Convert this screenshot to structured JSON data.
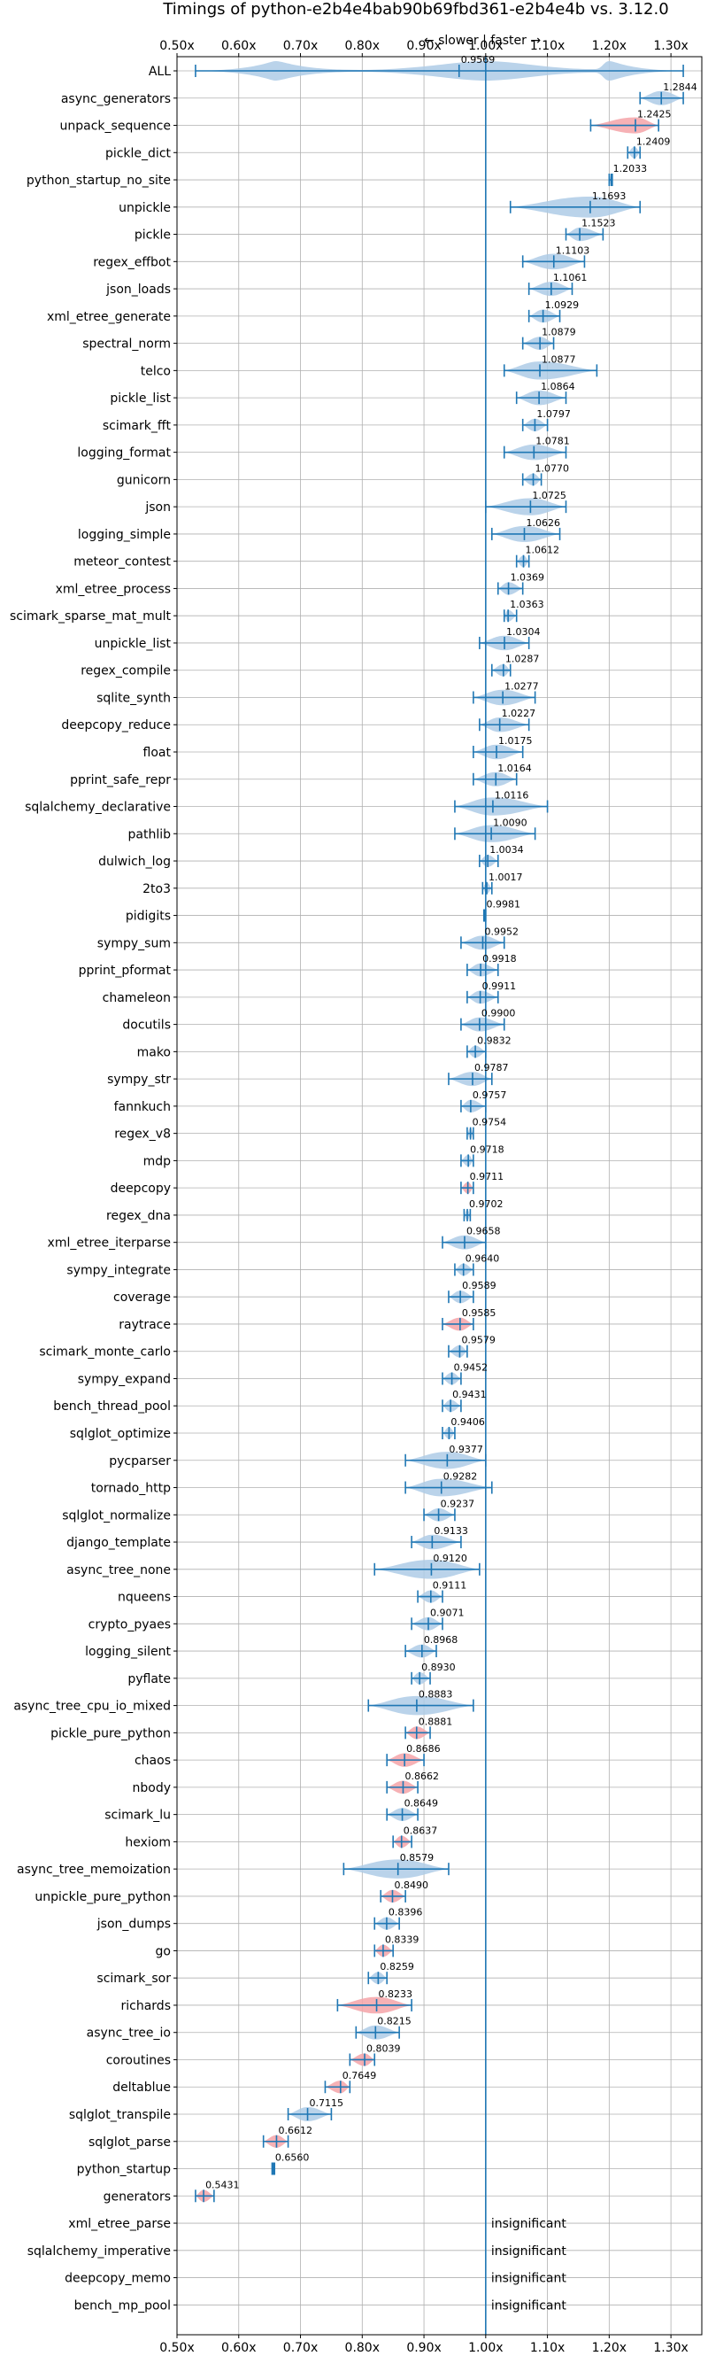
{
  "chart_data": {
    "type": "violin",
    "title": "Timings of python-e2b4e4bab90b69fbd361-e2b4e4b vs. 3.12.0",
    "direction_label": "← slower | faster →",
    "xlim": [
      0.5,
      1.35
    ],
    "xticks": [
      "0.50x",
      "0.60x",
      "0.70x",
      "0.80x",
      "0.90x",
      "1.00x",
      "1.10x",
      "1.20x",
      "1.30x"
    ],
    "grid": true,
    "colors": {
      "faster": "#aecbe6",
      "slower": "#f4a3a8",
      "line": "#1f77b4",
      "reference": "#1f77b4"
    },
    "insignificant_text": "insignificant",
    "benchmarks": [
      {
        "name": "ALL",
        "value": 0.9569,
        "min": 0.53,
        "max": 1.32,
        "color": "faster"
      },
      {
        "name": "async_generators",
        "value": 1.2844,
        "min": 1.25,
        "max": 1.32,
        "color": "faster"
      },
      {
        "name": "unpack_sequence",
        "value": 1.2425,
        "min": 1.17,
        "max": 1.28,
        "color": "slower"
      },
      {
        "name": "pickle_dict",
        "value": 1.2409,
        "min": 1.23,
        "max": 1.25,
        "color": "faster"
      },
      {
        "name": "python_startup_no_site",
        "value": 1.2033,
        "min": 1.2,
        "max": 1.205,
        "color": "faster"
      },
      {
        "name": "unpickle",
        "value": 1.1693,
        "min": 1.04,
        "max": 1.25,
        "color": "faster"
      },
      {
        "name": "pickle",
        "value": 1.1523,
        "min": 1.13,
        "max": 1.19,
        "color": "faster"
      },
      {
        "name": "regex_effbot",
        "value": 1.1103,
        "min": 1.06,
        "max": 1.16,
        "color": "faster"
      },
      {
        "name": "json_loads",
        "value": 1.1061,
        "min": 1.07,
        "max": 1.14,
        "color": "faster"
      },
      {
        "name": "xml_etree_generate",
        "value": 1.0929,
        "min": 1.07,
        "max": 1.12,
        "color": "faster"
      },
      {
        "name": "spectral_norm",
        "value": 1.0879,
        "min": 1.06,
        "max": 1.11,
        "color": "faster"
      },
      {
        "name": "telco",
        "value": 1.0877,
        "min": 1.03,
        "max": 1.18,
        "color": "faster"
      },
      {
        "name": "pickle_list",
        "value": 1.0864,
        "min": 1.05,
        "max": 1.13,
        "color": "faster"
      },
      {
        "name": "scimark_fft",
        "value": 1.0797,
        "min": 1.06,
        "max": 1.1,
        "color": "faster"
      },
      {
        "name": "logging_format",
        "value": 1.0781,
        "min": 1.03,
        "max": 1.13,
        "color": "faster"
      },
      {
        "name": "gunicorn",
        "value": 1.077,
        "min": 1.06,
        "max": 1.09,
        "color": "faster"
      },
      {
        "name": "json",
        "value": 1.0725,
        "min": 1.0,
        "max": 1.13,
        "color": "faster"
      },
      {
        "name": "logging_simple",
        "value": 1.0626,
        "min": 1.01,
        "max": 1.12,
        "color": "faster"
      },
      {
        "name": "meteor_contest",
        "value": 1.0612,
        "min": 1.05,
        "max": 1.07,
        "color": "faster"
      },
      {
        "name": "xml_etree_process",
        "value": 1.0369,
        "min": 1.02,
        "max": 1.06,
        "color": "faster"
      },
      {
        "name": "scimark_sparse_mat_mult",
        "value": 1.0363,
        "min": 1.03,
        "max": 1.05,
        "color": "faster"
      },
      {
        "name": "unpickle_list",
        "value": 1.0304,
        "min": 0.99,
        "max": 1.07,
        "color": "faster"
      },
      {
        "name": "regex_compile",
        "value": 1.0287,
        "min": 1.01,
        "max": 1.04,
        "color": "faster"
      },
      {
        "name": "sqlite_synth",
        "value": 1.0277,
        "min": 0.98,
        "max": 1.08,
        "color": "faster"
      },
      {
        "name": "deepcopy_reduce",
        "value": 1.0227,
        "min": 0.99,
        "max": 1.07,
        "color": "faster"
      },
      {
        "name": "float",
        "value": 1.0175,
        "min": 0.98,
        "max": 1.06,
        "color": "faster"
      },
      {
        "name": "pprint_safe_repr",
        "value": 1.0164,
        "min": 0.98,
        "max": 1.05,
        "color": "faster"
      },
      {
        "name": "sqlalchemy_declarative",
        "value": 1.0116,
        "min": 0.95,
        "max": 1.1,
        "color": "faster"
      },
      {
        "name": "pathlib",
        "value": 1.009,
        "min": 0.95,
        "max": 1.08,
        "color": "faster"
      },
      {
        "name": "dulwich_log",
        "value": 1.0034,
        "min": 0.99,
        "max": 1.02,
        "color": "faster"
      },
      {
        "name": "2to3",
        "value": 1.0017,
        "min": 0.995,
        "max": 1.01,
        "color": "faster"
      },
      {
        "name": "pidigits",
        "value": 0.9981,
        "min": 0.997,
        "max": 1.0,
        "color": "faster"
      },
      {
        "name": "sympy_sum",
        "value": 0.9952,
        "min": 0.96,
        "max": 1.03,
        "color": "faster"
      },
      {
        "name": "pprint_pformat",
        "value": 0.9918,
        "min": 0.97,
        "max": 1.02,
        "color": "faster"
      },
      {
        "name": "chameleon",
        "value": 0.9911,
        "min": 0.97,
        "max": 1.02,
        "color": "faster"
      },
      {
        "name": "docutils",
        "value": 0.99,
        "min": 0.96,
        "max": 1.03,
        "color": "faster"
      },
      {
        "name": "mako",
        "value": 0.9832,
        "min": 0.97,
        "max": 1.0,
        "color": "faster"
      },
      {
        "name": "sympy_str",
        "value": 0.9787,
        "min": 0.94,
        "max": 1.01,
        "color": "faster"
      },
      {
        "name": "fannkuch",
        "value": 0.9757,
        "min": 0.96,
        "max": 1.0,
        "color": "faster"
      },
      {
        "name": "regex_v8",
        "value": 0.9754,
        "min": 0.97,
        "max": 0.98,
        "color": "faster"
      },
      {
        "name": "mdp",
        "value": 0.9718,
        "min": 0.96,
        "max": 0.98,
        "color": "faster"
      },
      {
        "name": "deepcopy",
        "value": 0.9711,
        "min": 0.96,
        "max": 0.98,
        "color": "slower"
      },
      {
        "name": "regex_dna",
        "value": 0.9702,
        "min": 0.965,
        "max": 0.975,
        "color": "faster"
      },
      {
        "name": "xml_etree_iterparse",
        "value": 0.9658,
        "min": 0.93,
        "max": 1.0,
        "color": "faster"
      },
      {
        "name": "sympy_integrate",
        "value": 0.964,
        "min": 0.95,
        "max": 0.98,
        "color": "faster"
      },
      {
        "name": "coverage",
        "value": 0.9589,
        "min": 0.94,
        "max": 0.98,
        "color": "faster"
      },
      {
        "name": "raytrace",
        "value": 0.9585,
        "min": 0.93,
        "max": 0.98,
        "color": "slower"
      },
      {
        "name": "scimark_monte_carlo",
        "value": 0.9579,
        "min": 0.94,
        "max": 0.97,
        "color": "faster"
      },
      {
        "name": "sympy_expand",
        "value": 0.9452,
        "min": 0.93,
        "max": 0.96,
        "color": "faster"
      },
      {
        "name": "bench_thread_pool",
        "value": 0.9431,
        "min": 0.93,
        "max": 0.96,
        "color": "faster"
      },
      {
        "name": "sqlglot_optimize",
        "value": 0.9406,
        "min": 0.93,
        "max": 0.95,
        "color": "faster"
      },
      {
        "name": "pycparser",
        "value": 0.9377,
        "min": 0.87,
        "max": 1.0,
        "color": "faster"
      },
      {
        "name": "tornado_http",
        "value": 0.9282,
        "min": 0.87,
        "max": 1.01,
        "color": "faster"
      },
      {
        "name": "sqlglot_normalize",
        "value": 0.9237,
        "min": 0.9,
        "max": 0.95,
        "color": "faster"
      },
      {
        "name": "django_template",
        "value": 0.9133,
        "min": 0.88,
        "max": 0.96,
        "color": "faster"
      },
      {
        "name": "async_tree_none",
        "value": 0.912,
        "min": 0.82,
        "max": 0.99,
        "color": "faster"
      },
      {
        "name": "nqueens",
        "value": 0.9111,
        "min": 0.89,
        "max": 0.93,
        "color": "faster"
      },
      {
        "name": "crypto_pyaes",
        "value": 0.9071,
        "min": 0.88,
        "max": 0.93,
        "color": "faster"
      },
      {
        "name": "logging_silent",
        "value": 0.8968,
        "min": 0.87,
        "max": 0.92,
        "color": "faster"
      },
      {
        "name": "pyflate",
        "value": 0.893,
        "min": 0.88,
        "max": 0.91,
        "color": "faster"
      },
      {
        "name": "async_tree_cpu_io_mixed",
        "value": 0.8883,
        "min": 0.81,
        "max": 0.98,
        "color": "faster"
      },
      {
        "name": "pickle_pure_python",
        "value": 0.8881,
        "min": 0.87,
        "max": 0.91,
        "color": "slower"
      },
      {
        "name": "chaos",
        "value": 0.8686,
        "min": 0.84,
        "max": 0.9,
        "color": "slower"
      },
      {
        "name": "nbody",
        "value": 0.8662,
        "min": 0.84,
        "max": 0.89,
        "color": "slower"
      },
      {
        "name": "scimark_lu",
        "value": 0.8649,
        "min": 0.84,
        "max": 0.89,
        "color": "faster"
      },
      {
        "name": "hexiom",
        "value": 0.8637,
        "min": 0.85,
        "max": 0.88,
        "color": "slower"
      },
      {
        "name": "async_tree_memoization",
        "value": 0.8579,
        "min": 0.77,
        "max": 0.94,
        "color": "faster"
      },
      {
        "name": "unpickle_pure_python",
        "value": 0.849,
        "min": 0.83,
        "max": 0.87,
        "color": "slower"
      },
      {
        "name": "json_dumps",
        "value": 0.8396,
        "min": 0.82,
        "max": 0.86,
        "color": "faster"
      },
      {
        "name": "go",
        "value": 0.8339,
        "min": 0.82,
        "max": 0.85,
        "color": "slower"
      },
      {
        "name": "scimark_sor",
        "value": 0.8259,
        "min": 0.81,
        "max": 0.84,
        "color": "faster"
      },
      {
        "name": "richards",
        "value": 0.8233,
        "min": 0.76,
        "max": 0.88,
        "color": "slower"
      },
      {
        "name": "async_tree_io",
        "value": 0.8215,
        "min": 0.79,
        "max": 0.86,
        "color": "faster"
      },
      {
        "name": "coroutines",
        "value": 0.8039,
        "min": 0.78,
        "max": 0.82,
        "color": "slower"
      },
      {
        "name": "deltablue",
        "value": 0.7649,
        "min": 0.74,
        "max": 0.78,
        "color": "slower"
      },
      {
        "name": "sqlglot_transpile",
        "value": 0.7115,
        "min": 0.68,
        "max": 0.75,
        "color": "faster"
      },
      {
        "name": "sqlglot_parse",
        "value": 0.6612,
        "min": 0.64,
        "max": 0.68,
        "color": "slower"
      },
      {
        "name": "python_startup",
        "value": 0.656,
        "min": 0.654,
        "max": 0.658,
        "color": "faster"
      },
      {
        "name": "generators",
        "value": 0.5431,
        "min": 0.53,
        "max": 0.56,
        "color": "slower"
      },
      {
        "name": "xml_etree_parse",
        "value": null,
        "color": "none"
      },
      {
        "name": "sqlalchemy_imperative",
        "value": null,
        "color": "none"
      },
      {
        "name": "deepcopy_memo",
        "value": null,
        "color": "none"
      },
      {
        "name": "bench_mp_pool",
        "value": null,
        "color": "none"
      }
    ]
  }
}
